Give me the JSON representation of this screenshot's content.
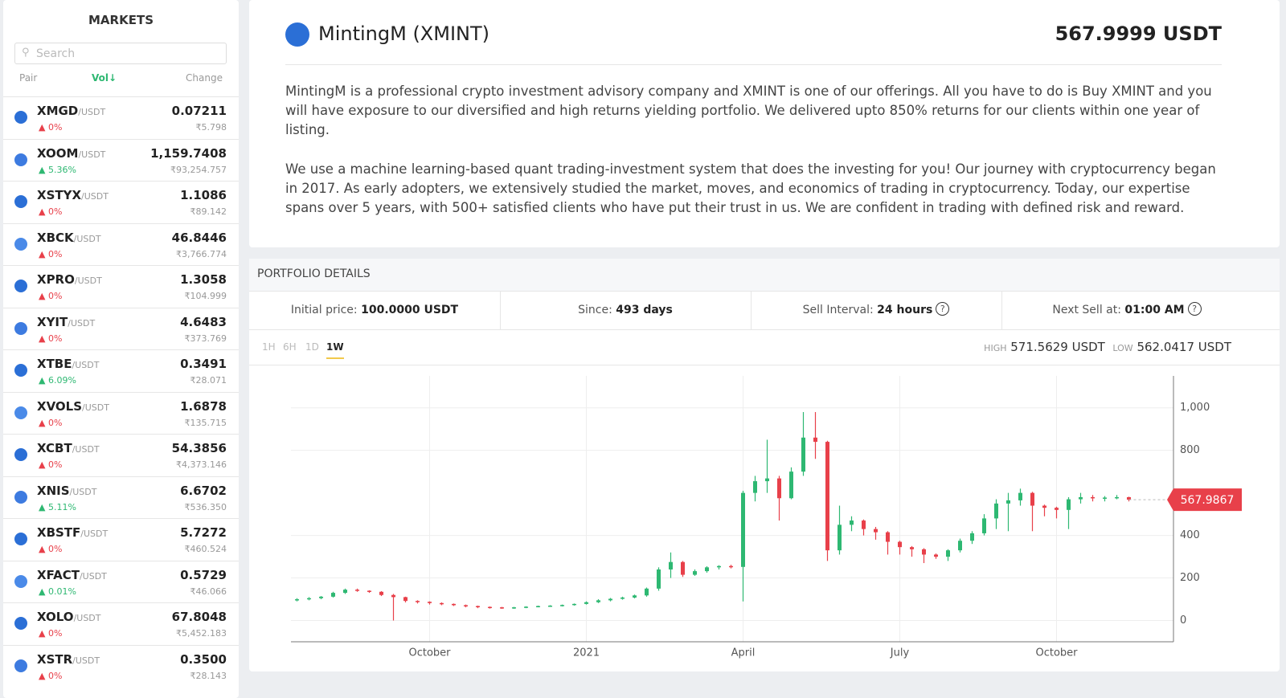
{
  "sidebar": {
    "title": "MARKETS",
    "search_placeholder": "Search",
    "columns": [
      "Pair",
      "Vol",
      "Change"
    ],
    "markets": [
      {
        "symbol": "XMGD",
        "quote": "/USDT",
        "price": "0.07211",
        "change": "0%",
        "fiat": "₹5.798"
      },
      {
        "symbol": "XOOM",
        "quote": "/USDT",
        "price": "1,159.7408",
        "change": "5.36%",
        "fiat": "₹93,254.757"
      },
      {
        "symbol": "XSTYX",
        "quote": "/USDT",
        "price": "1.1086",
        "change": "0%",
        "fiat": "₹89.142"
      },
      {
        "symbol": "XBCK",
        "quote": "/USDT",
        "price": "46.8446",
        "change": "0%",
        "fiat": "₹3,766.774"
      },
      {
        "symbol": "XPRO",
        "quote": "/USDT",
        "price": "1.3058",
        "change": "0%",
        "fiat": "₹104.999"
      },
      {
        "symbol": "XYIT",
        "quote": "/USDT",
        "price": "4.6483",
        "change": "0%",
        "fiat": "₹373.769"
      },
      {
        "symbol": "XTBE",
        "quote": "/USDT",
        "price": "0.3491",
        "change": "6.09%",
        "fiat": "₹28.071"
      },
      {
        "symbol": "XVOLS",
        "quote": "/USDT",
        "price": "1.6878",
        "change": "0%",
        "fiat": "₹135.715"
      },
      {
        "symbol": "XCBT",
        "quote": "/USDT",
        "price": "54.3856",
        "change": "0%",
        "fiat": "₹4,373.146"
      },
      {
        "symbol": "XNIS",
        "quote": "/USDT",
        "price": "6.6702",
        "change": "5.11%",
        "fiat": "₹536.350"
      },
      {
        "symbol": "XBSTF",
        "quote": "/USDT",
        "price": "5.7272",
        "change": "0%",
        "fiat": "₹460.524"
      },
      {
        "symbol": "XFACT",
        "quote": "/USDT",
        "price": "0.5729",
        "change": "0.01%",
        "fiat": "₹46.066"
      },
      {
        "symbol": "XOLO",
        "quote": "/USDT",
        "price": "67.8048",
        "change": "0%",
        "fiat": "₹5,452.183"
      },
      {
        "symbol": "XSTR",
        "quote": "/USDT",
        "price": "0.3500",
        "change": "0%",
        "fiat": "₹28.143"
      }
    ]
  },
  "header": {
    "name": "MintingM (XMINT)",
    "price": "567.9999 USDT"
  },
  "description": [
    "MintingM is a professional crypto investment advisory company and XMINT is one of our offerings. All you have to do is Buy XMINT and you will have exposure to our diversified and high returns yielding portfolio. We delivered upto 850% returns for our clients within one year of listing.",
    "We use a machine learning-based quant trading-investment system that does the investing for you! Our journey with cryptocurrency began in 2017. As early adopters, we extensively studied the market, moves, and economics of trading in cryptocurrency. Today, our expertise spans over 5 years, with 500+ satisfied clients who have put their trust in us. We are confident in trading with defined risk and reward."
  ],
  "portfolio": {
    "title": "PORTFOLIO DETAILS",
    "stats": [
      {
        "label": "Initial price:",
        "value": "100.0000 USDT"
      },
      {
        "label": "Since:",
        "value": "493 days"
      },
      {
        "label": "Sell Interval:",
        "value": "24 hours"
      },
      {
        "label": "Next Sell at:",
        "value": "01:00 AM"
      }
    ],
    "ranges": [
      "1H",
      "6H",
      "1D",
      "1W"
    ],
    "high_label": "HIGH",
    "high": "571.5629 USDT",
    "low_label": "LOW",
    "low": "562.0417 USDT"
  },
  "chart_data": {
    "type": "candlestick",
    "up_color": "#2eb872",
    "down_color": "#e8404a",
    "grid": true,
    "categories": [
      null,
      null,
      null,
      null,
      null,
      null,
      null,
      null,
      null,
      null,
      null,
      "October",
      null,
      null,
      null,
      null,
      null,
      null,
      null,
      null,
      null,
      null,
      null,
      null,
      "2021",
      null,
      null,
      null,
      null,
      null,
      null,
      null,
      null,
      null,
      null,
      null,
      null,
      "April",
      null,
      null,
      null,
      null,
      null,
      null,
      null,
      null,
      null,
      null,
      null,
      null,
      "July",
      null,
      null,
      null,
      null,
      null,
      null,
      null,
      null,
      null,
      null,
      null,
      null,
      "October",
      null,
      null,
      null,
      null,
      null,
      null
    ],
    "open": [
      95,
      100,
      105,
      112,
      130,
      145,
      140,
      135,
      120,
      110,
      92,
      88,
      82,
      78,
      72,
      68,
      64,
      62,
      60,
      62,
      65,
      68,
      70,
      73,
      78,
      86,
      95,
      102,
      108,
      118,
      150,
      240,
      275,
      215,
      232,
      250,
      256,
      252,
      600,
      655,
      668,
      575,
      700,
      860,
      840,
      330,
      450,
      470,
      430,
      415,
      370,
      345,
      335,
      310,
      300,
      330,
      375,
      410,
      480,
      550,
      565,
      600,
      540,
      530,
      520,
      570,
      580,
      575,
      578,
      580
    ],
    "high": [
      105,
      110,
      115,
      135,
      150,
      150,
      142,
      138,
      125,
      112,
      95,
      90,
      85,
      80,
      75,
      70,
      66,
      64,
      64,
      67,
      70,
      72,
      75,
      80,
      90,
      100,
      106,
      112,
      122,
      155,
      250,
      320,
      280,
      240,
      255,
      260,
      262,
      610,
      680,
      850,
      680,
      720,
      980,
      980,
      845,
      540,
      490,
      475,
      440,
      420,
      375,
      350,
      340,
      315,
      335,
      385,
      420,
      500,
      570,
      600,
      620,
      605,
      545,
      535,
      580,
      600,
      590,
      585,
      590,
      582
    ],
    "low": [
      90,
      95,
      100,
      108,
      125,
      135,
      130,
      115,
      0,
      85,
      80,
      75,
      72,
      68,
      62,
      58,
      56,
      55,
      55,
      58,
      62,
      64,
      66,
      70,
      75,
      82,
      90,
      98,
      104,
      112,
      140,
      200,
      205,
      210,
      225,
      240,
      245,
      90,
      560,
      600,
      470,
      570,
      680,
      760,
      280,
      310,
      420,
      400,
      380,
      310,
      310,
      300,
      270,
      290,
      280,
      320,
      360,
      400,
      430,
      420,
      540,
      420,
      490,
      480,
      430,
      550,
      560,
      560,
      570,
      560
    ],
    "close": [
      100,
      105,
      112,
      130,
      145,
      140,
      135,
      120,
      110,
      92,
      88,
      82,
      78,
      72,
      68,
      64,
      62,
      60,
      62,
      65,
      68,
      70,
      73,
      78,
      86,
      95,
      102,
      108,
      118,
      150,
      240,
      275,
      215,
      232,
      250,
      256,
      252,
      600,
      655,
      668,
      575,
      700,
      860,
      840,
      330,
      450,
      470,
      430,
      415,
      370,
      345,
      335,
      310,
      300,
      330,
      375,
      410,
      480,
      550,
      565,
      600,
      540,
      530,
      520,
      570,
      580,
      575,
      578,
      580,
      568
    ],
    "ylim": [
      -100,
      1150
    ],
    "yticks": [
      0,
      200,
      400,
      800,
      {
        "value": 1000,
        "label": "1,000"
      }
    ],
    "last_price": 567.9867
  }
}
